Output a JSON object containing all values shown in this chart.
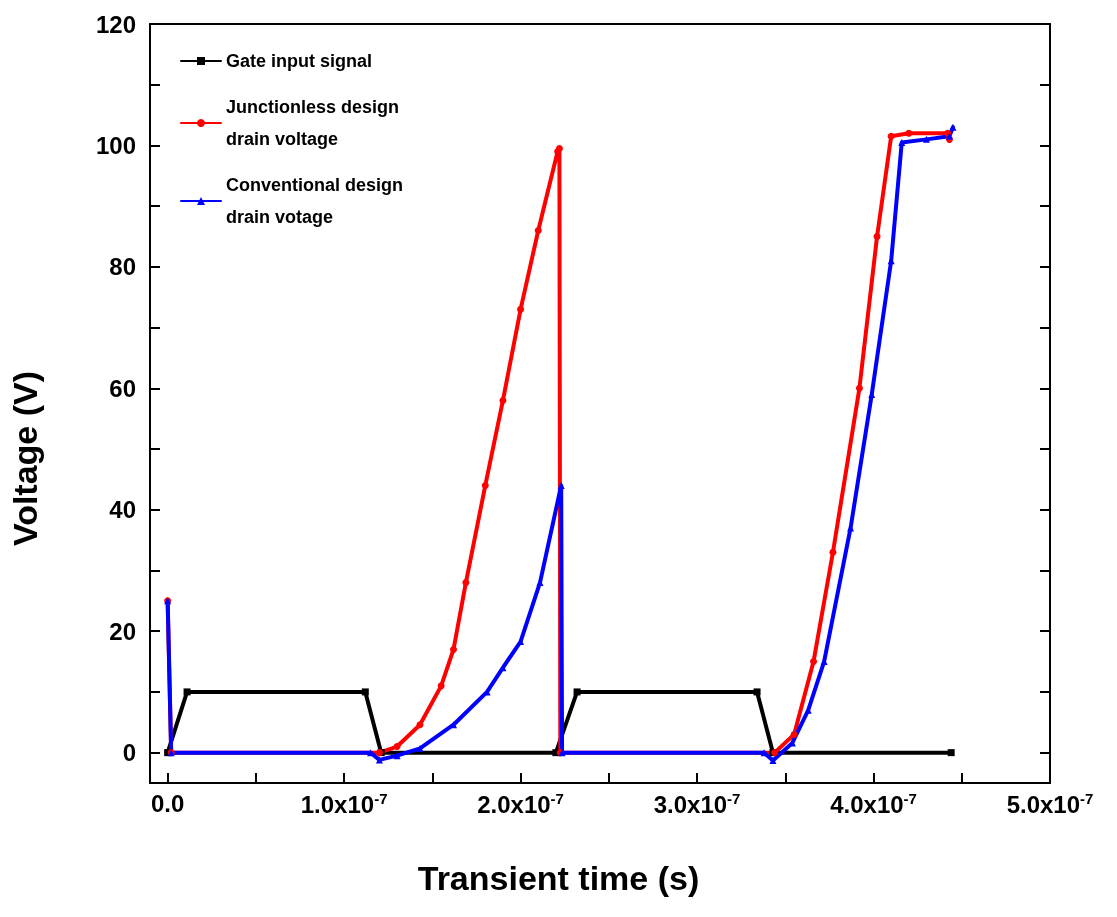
{
  "chart_data": {
    "type": "line",
    "xlabel": "Transient time (s)",
    "ylabel": "Voltage (V)",
    "xlim": [
      -1e-08,
      5e-07
    ],
    "ylim": [
      -5,
      120
    ],
    "xticks": [
      {
        "value": 0,
        "label": "0.0"
      },
      {
        "value": 5e-08,
        "label": null
      },
      {
        "value": 1e-07,
        "label": "1.0x10$^{-7}$"
      },
      {
        "value": 1.5e-07,
        "label": null
      },
      {
        "value": 2e-07,
        "label": "2.0x10$^{-7}$"
      },
      {
        "value": 2.5e-07,
        "label": null
      },
      {
        "value": 3e-07,
        "label": "3.0x10$^{-7}$"
      },
      {
        "value": 3.5e-07,
        "label": null
      },
      {
        "value": 4e-07,
        "label": "4.0x10$^{-7}$"
      },
      {
        "value": 4.5e-07,
        "label": null
      },
      {
        "value": 5e-07,
        "label": "5.0x10$^{-7}$"
      }
    ],
    "yticks": [
      0,
      {
        "value": 10,
        "label": null
      },
      20,
      {
        "value": 30,
        "label": null
      },
      40,
      {
        "value": 50,
        "label": null
      },
      60,
      {
        "value": 70,
        "label": null
      },
      80,
      {
        "value": 90,
        "label": null
      },
      100,
      {
        "value": 110,
        "label": null
      },
      120
    ],
    "grid": false,
    "legend": "top left",
    "line_style": "solid",
    "series": [
      {
        "name": "Gate input signal",
        "color": "#000000",
        "marker": "square",
        "x": [
          0,
          1.1e-08,
          1.12e-07,
          1.21e-07,
          2.2e-07,
          2.32e-07,
          3.34e-07,
          3.43e-07,
          4.44e-07
        ],
        "values": [
          0,
          10,
          10,
          0,
          0,
          10,
          10,
          0,
          0
        ]
      },
      {
        "name": "Junctionless design\ndrain voltage",
        "color": "#ff0000",
        "marker": "circle",
        "x": [
          0,
          2e-09,
          1.2e-07,
          1.3e-07,
          1.43e-07,
          1.55e-07,
          1.62e-07,
          1.69e-07,
          1.8e-07,
          1.9e-07,
          2e-07,
          2.1e-07,
          2.21e-07,
          2.22e-07,
          2.225e-07,
          3.44e-07,
          3.55e-07,
          3.66e-07,
          3.77e-07,
          3.92e-07,
          4.02e-07,
          4.1e-07,
          4.2e-07,
          4.42e-07,
          4.43e-07
        ],
        "values": [
          25,
          0,
          0,
          1,
          4.6,
          11,
          17,
          28,
          44,
          58,
          73,
          86,
          99,
          99.5,
          0,
          0,
          3,
          15,
          33,
          60,
          85,
          101.5,
          102,
          102,
          101
        ]
      },
      {
        "name": "Conventional design\ndrain votage",
        "color": "#0000ff",
        "marker": "triangle",
        "x": [
          0,
          2e-09,
          1.15e-07,
          1.2e-07,
          1.3e-07,
          1.43e-07,
          1.62e-07,
          1.81e-07,
          1.9e-07,
          2e-07,
          2.11e-07,
          2.23e-07,
          2.235e-07,
          3.38e-07,
          3.43e-07,
          3.54e-07,
          3.63e-07,
          3.72e-07,
          3.87e-07,
          3.99e-07,
          4.1e-07,
          4.16e-07,
          4.3e-07,
          4.43e-07,
          4.45e-07
        ],
        "values": [
          25,
          0,
          0,
          -1.2,
          -0.5,
          0.7,
          4.6,
          10,
          14,
          18.3,
          28,
          44,
          0,
          0,
          -1.3,
          1.6,
          7,
          15,
          37,
          59,
          81,
          100.5,
          101,
          101.5,
          103
        ]
      }
    ]
  }
}
